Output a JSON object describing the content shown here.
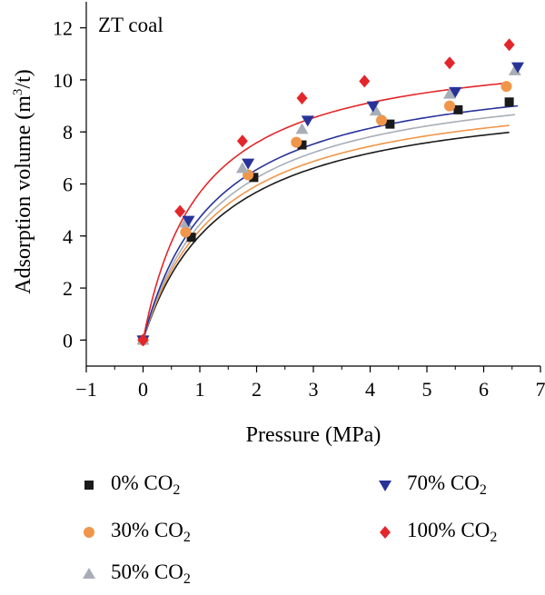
{
  "chart_data": {
    "type": "scatter",
    "annotation": "ZT coal",
    "xlabel": "Pressure (MPa)",
    "ylabel": {
      "main": "Adsorption volume (m",
      "sup": "3",
      "tail": "/t)"
    },
    "xlim": [
      -1,
      7
    ],
    "ylim": [
      -1,
      13
    ],
    "xticks": [
      -1,
      0,
      1,
      2,
      3,
      4,
      5,
      6,
      7
    ],
    "yticks": [
      0,
      2,
      4,
      6,
      8,
      10,
      12
    ],
    "grid": false,
    "legend_position": "bottom",
    "series": [
      {
        "name": "0% CO",
        "sub": "2",
        "marker": "square",
        "color": "#1a1a1a",
        "x": [
          0,
          0.85,
          1.95,
          2.8,
          4.35,
          5.55,
          6.45
        ],
        "y": [
          0,
          3.95,
          6.25,
          7.5,
          8.3,
          8.85,
          9.15
        ],
        "fit_x_end": 6.45
      },
      {
        "name": "30% CO",
        "sub": "2",
        "marker": "circle",
        "color": "#f0964a",
        "x": [
          0,
          0.75,
          1.85,
          2.7,
          4.2,
          5.4,
          6.4
        ],
        "y": [
          0,
          4.15,
          6.35,
          7.6,
          8.45,
          9.0,
          9.75
        ],
        "fit_x_end": 6.45
      },
      {
        "name": "50% CO",
        "sub": "2",
        "marker": "triangle-up",
        "color": "#a8aeb8",
        "x": [
          0,
          0.75,
          1.75,
          2.8,
          4.1,
          5.4,
          6.55
        ],
        "y": [
          0,
          4.5,
          6.6,
          8.1,
          8.8,
          9.45,
          10.35
        ],
        "fit_x_end": 6.55
      },
      {
        "name": "70% CO",
        "sub": "2",
        "marker": "triangle-down",
        "color": "#28339a",
        "x": [
          0,
          0.8,
          1.85,
          2.9,
          4.05,
          5.5,
          6.6
        ],
        "y": [
          0,
          4.6,
          6.8,
          8.45,
          9.0,
          9.55,
          10.5
        ],
        "fit_x_end": 6.6
      },
      {
        "name": "100% CO",
        "sub": "2",
        "marker": "diamond",
        "color": "#e3262b",
        "x": [
          0,
          0.65,
          1.75,
          2.8,
          3.9,
          5.4,
          6.45
        ],
        "y": [
          0,
          4.95,
          7.65,
          9.3,
          9.95,
          10.65,
          11.35
        ],
        "fit_x_end": 6.45
      }
    ],
    "fit_curves": [
      {
        "color": "#1a1a1a",
        "vl": 9.75,
        "b": 0.7
      },
      {
        "color": "#f0964a",
        "vl": 10.0,
        "b": 0.73
      },
      {
        "color": "#a8aeb8",
        "vl": 10.45,
        "b": 0.74
      },
      {
        "color": "#28339a",
        "vl": 10.75,
        "b": 0.78
      },
      {
        "color": "#e3262b",
        "vl": 11.45,
        "b": 0.98
      }
    ]
  }
}
